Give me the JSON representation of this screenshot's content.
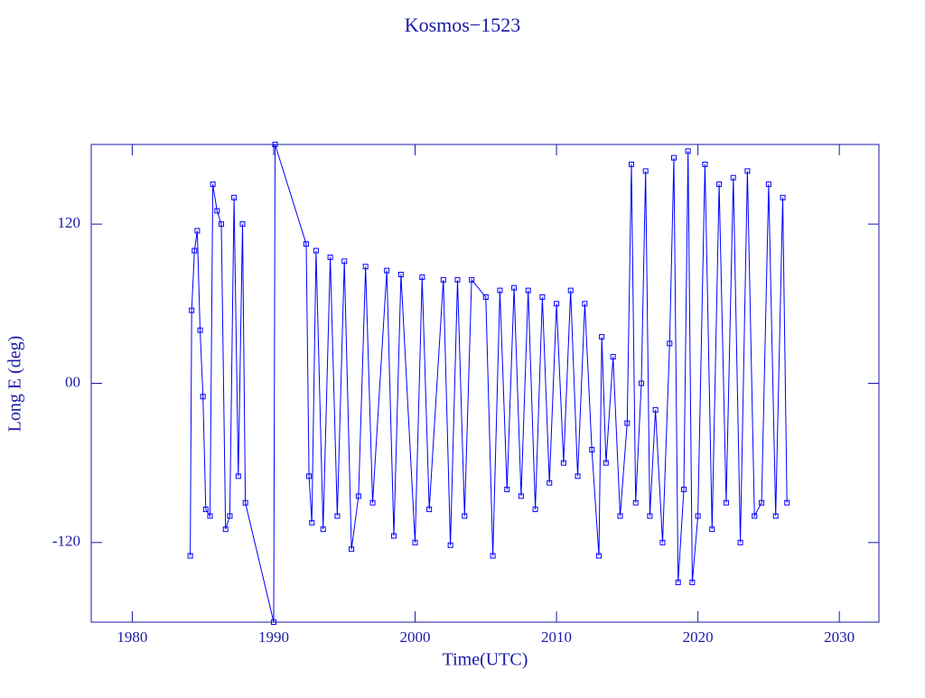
{
  "chart_data": {
    "type": "line",
    "title": "Kosmos−1523",
    "x_label": "Time(UTC)",
    "y_label": "Long E (deg)",
    "xlim": [
      1977.1,
      2032.8
    ],
    "ylim": [
      -180,
      180
    ],
    "xticks": [
      1980,
      1990,
      2000,
      2010,
      2020,
      2030
    ],
    "yticks": [
      120,
      {
        "value": 0,
        "label": "00"
      },
      -120
    ],
    "series": [
      {
        "color": "#0000ff",
        "x": [
          1984.1,
          1984.2,
          1984.4,
          1984.6,
          1984.8,
          1985.0,
          1985.2,
          1985.5,
          1985.7,
          1986.0,
          1986.3,
          1986.6,
          1986.9,
          1987.2,
          1987.5,
          1987.8,
          1988.0,
          1990.0,
          1990.1,
          1992.3,
          1992.5,
          1992.7,
          1993.0,
          1993.5,
          1994.0,
          1994.5,
          1995.0,
          1995.5,
          1996.0,
          1996.5,
          1997.0,
          1998.0,
          1998.5,
          1999.0,
          2000.0,
          2000.5,
          2001.0,
          2002.0,
          2002.5,
          2003.0,
          2003.5,
          2004.0,
          2005.0,
          2005.5,
          2006.0,
          2006.5,
          2007.0,
          2007.5,
          2008.0,
          2008.5,
          2009.0,
          2009.5,
          2010.0,
          2010.5,
          2011.0,
          2011.5,
          2012.0,
          2012.5,
          2013.0,
          2013.2,
          2013.5,
          2014.0,
          2014.5,
          2015.0,
          2015.3,
          2015.6,
          2016.0,
          2016.3,
          2016.6,
          2017.0,
          2017.5,
          2018.0,
          2018.3,
          2018.6,
          2019.0,
          2019.3,
          2019.6,
          2020.0,
          2020.5,
          2021.0,
          2021.5,
          2022.0,
          2022.5,
          2023.0,
          2023.5,
          2024.0,
          2024.5,
          2025.0,
          2025.5,
          2026.0,
          2026.3
        ],
        "values": [
          -130,
          55,
          100,
          115,
          40,
          -10,
          -95,
          -100,
          150,
          130,
          120,
          -110,
          -100,
          140,
          -70,
          120,
          -90,
          -180,
          180,
          105,
          -70,
          -105,
          100,
          -110,
          95,
          -100,
          92,
          -125,
          -85,
          88,
          -90,
          85,
          -115,
          82,
          -120,
          80,
          -95,
          78,
          -122,
          78,
          -100,
          78,
          65,
          -130,
          70,
          -80,
          72,
          -85,
          70,
          -95,
          65,
          -75,
          60,
          -60,
          70,
          -70,
          60,
          -50,
          -130,
          35,
          -60,
          20,
          -100,
          -30,
          165,
          -90,
          0,
          160,
          -100,
          -20,
          -120,
          30,
          170,
          -150,
          -80,
          175,
          -150,
          -100,
          165,
          -110,
          150,
          -90,
          155,
          -120,
          160,
          -100,
          -90,
          150,
          -100,
          140,
          -90
        ]
      }
    ]
  }
}
